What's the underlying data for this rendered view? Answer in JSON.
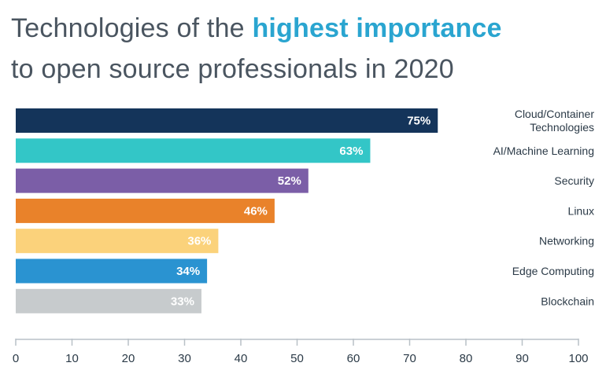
{
  "chart_data": {
    "type": "bar",
    "orientation": "horizontal",
    "title": {
      "line1_prefix": "Technologies of the ",
      "line1_highlight": "highest importance",
      "line2": "to open source professionals in 2020"
    },
    "categories": [
      [
        "Cloud/Container",
        "Technologies"
      ],
      [
        "AI/Machine Learning"
      ],
      [
        "Security"
      ],
      [
        "Linux"
      ],
      [
        "Networking"
      ],
      [
        "Edge Computing"
      ],
      [
        "Blockchain"
      ]
    ],
    "values": [
      75,
      63,
      52,
      46,
      36,
      34,
      33
    ],
    "value_labels": [
      "75%",
      "63%",
      "52%",
      "46%",
      "36%",
      "34%",
      "33%"
    ],
    "colors": [
      "#14345a",
      "#33c6c7",
      "#7b5ea7",
      "#e9822a",
      "#fbd27b",
      "#2a93d1",
      "#c7cbcd"
    ],
    "xlim": [
      0,
      100
    ],
    "xticks": [
      0,
      10,
      20,
      30,
      40,
      50,
      60,
      70,
      80,
      90,
      100
    ],
    "xlabel": "",
    "ylabel": "",
    "grid": false,
    "legend": "none"
  }
}
